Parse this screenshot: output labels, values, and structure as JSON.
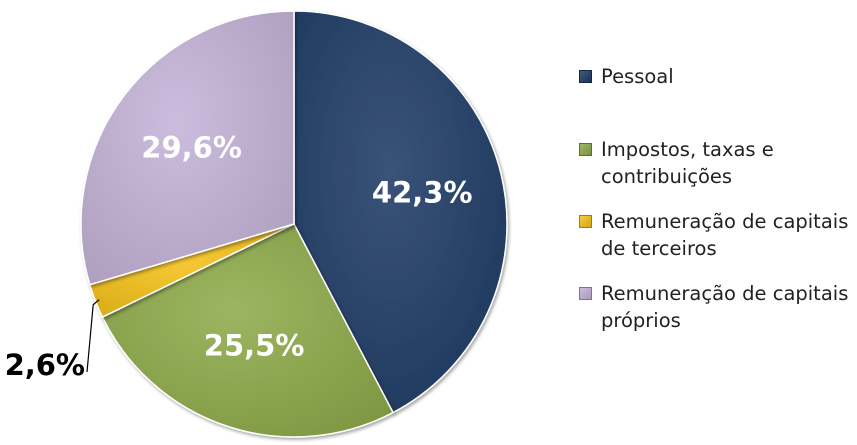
{
  "chart_data": {
    "type": "pie",
    "categories": [
      "Pessoal",
      "Impostos, taxas e contribuições",
      "Remuneração de capitais de terceiros",
      "Remuneração de capitais próprios"
    ],
    "values": [
      42.3,
      25.5,
      2.6,
      29.6
    ],
    "data_labels": [
      "42,3%",
      "25,5%",
      "2,6%",
      "29,6%"
    ],
    "colors": [
      "#1f3c66",
      "#8eab4a",
      "#f6c21a",
      "#c5b3d8"
    ],
    "label_colors": [
      "#ffffff",
      "#ffffff",
      "#000000",
      "#ffffff"
    ],
    "start_angle_deg": 0,
    "direction": "clockwise",
    "legend_position": "right"
  },
  "legend": {
    "items": [
      {
        "lines": [
          "Pessoal"
        ],
        "icon": "square-swatch"
      },
      {
        "lines": [
          "Impostos, taxas e",
          "contribuições"
        ],
        "icon": "square-swatch"
      },
      {
        "lines": [
          "Remuneração de capitais",
          "de terceiros"
        ],
        "icon": "square-swatch"
      },
      {
        "lines": [
          "Remuneração de capitais",
          "próprios"
        ],
        "icon": "square-swatch"
      }
    ]
  }
}
